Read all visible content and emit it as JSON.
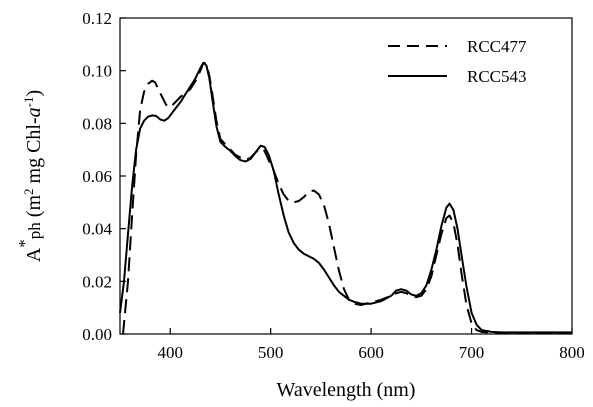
{
  "chart_data": {
    "type": "line",
    "xlabel": "Wavelength (nm)",
    "ylabel": {
      "prefix": "A",
      "star": "*",
      "sub": "ph",
      "paren_open": " (m",
      "sup1": "2",
      "mid": " mg Chl-",
      "italic": "a",
      "sup2": "-1",
      "paren_close": ")"
    },
    "xlim": [
      350,
      800
    ],
    "ylim": [
      0,
      0.12
    ],
    "xticks": [
      {
        "value": 400,
        "label": "400"
      },
      {
        "value": 500,
        "label": "500"
      },
      {
        "value": 600,
        "label": "600"
      },
      {
        "value": 700,
        "label": "700"
      },
      {
        "value": 800,
        "label": "800"
      }
    ],
    "yticks": [
      {
        "value": 0.0,
        "label": "0.00"
      },
      {
        "value": 0.02,
        "label": "0.02"
      },
      {
        "value": 0.04,
        "label": "0.04"
      },
      {
        "value": 0.06,
        "label": "0.06"
      },
      {
        "value": 0.08,
        "label": "0.08"
      },
      {
        "value": 0.1,
        "label": "0.10"
      },
      {
        "value": 0.12,
        "label": "0.12"
      }
    ],
    "grid": false,
    "legend_position": "top-right",
    "series": [
      {
        "name": "RCC477",
        "style": "dashed",
        "color": "#000000",
        "x": [
          353,
          358,
          362,
          366,
          370,
          374,
          378,
          382,
          385,
          388,
          392,
          396,
          400,
          405,
          410,
          415,
          420,
          425,
          430,
          433,
          436,
          439,
          442,
          446,
          450,
          455,
          460,
          465,
          470,
          475,
          480,
          485,
          490,
          494,
          498,
          503,
          508,
          513,
          518,
          523,
          528,
          533,
          538,
          543,
          548,
          553,
          558,
          563,
          568,
          573,
          578,
          583,
          590,
          600,
          610,
          620,
          625,
          630,
          635,
          640,
          645,
          650,
          655,
          660,
          665,
          670,
          675,
          678,
          682,
          686,
          690,
          695,
          700,
          705,
          710,
          720,
          730,
          740,
          750,
          760,
          770,
          780,
          790,
          800
        ],
        "y": [
          0.0,
          0.02,
          0.045,
          0.068,
          0.085,
          0.092,
          0.095,
          0.0962,
          0.0955,
          0.093,
          0.09,
          0.087,
          0.086,
          0.088,
          0.09,
          0.0915,
          0.093,
          0.096,
          0.1,
          0.103,
          0.1025,
          0.098,
          0.091,
          0.081,
          0.074,
          0.072,
          0.07,
          0.068,
          0.067,
          0.066,
          0.067,
          0.069,
          0.0705,
          0.0695,
          0.066,
          0.062,
          0.057,
          0.053,
          0.0505,
          0.05,
          0.0505,
          0.052,
          0.054,
          0.0545,
          0.053,
          0.049,
          0.042,
          0.033,
          0.024,
          0.017,
          0.013,
          0.0115,
          0.011,
          0.012,
          0.013,
          0.0145,
          0.0155,
          0.016,
          0.0155,
          0.0145,
          0.014,
          0.0145,
          0.017,
          0.022,
          0.03,
          0.038,
          0.044,
          0.045,
          0.042,
          0.034,
          0.023,
          0.011,
          0.004,
          0.0015,
          0.0008,
          0.0005,
          0.0005,
          0.0005,
          0.0005,
          0.0005,
          0.0005,
          0.0005,
          0.0005,
          0.0005
        ]
      },
      {
        "name": "RCC543",
        "style": "solid",
        "color": "#000000",
        "x": [
          350,
          354,
          358,
          362,
          366,
          370,
          374,
          378,
          382,
          386,
          390,
          394,
          398,
          402,
          406,
          410,
          415,
          420,
          425,
          430,
          433,
          436,
          439,
          442,
          446,
          450,
          455,
          460,
          465,
          470,
          475,
          480,
          485,
          490,
          494,
          498,
          503,
          508,
          513,
          518,
          523,
          528,
          533,
          538,
          543,
          548,
          553,
          558,
          563,
          568,
          573,
          578,
          585,
          590,
          600,
          610,
          620,
          625,
          630,
          635,
          640,
          645,
          650,
          655,
          660,
          665,
          670,
          675,
          678,
          682,
          686,
          690,
          695,
          700,
          705,
          710,
          720,
          730,
          740,
          750,
          760,
          770,
          780,
          790,
          800
        ],
        "y": [
          0.008,
          0.02,
          0.038,
          0.056,
          0.07,
          0.078,
          0.081,
          0.0825,
          0.083,
          0.0828,
          0.0815,
          0.081,
          0.082,
          0.084,
          0.086,
          0.088,
          0.091,
          0.094,
          0.097,
          0.101,
          0.103,
          0.102,
          0.097,
          0.089,
          0.079,
          0.073,
          0.071,
          0.0695,
          0.0675,
          0.066,
          0.0655,
          0.0665,
          0.069,
          0.0715,
          0.071,
          0.068,
          0.062,
          0.053,
          0.045,
          0.0385,
          0.0345,
          0.032,
          0.0305,
          0.0295,
          0.0285,
          0.027,
          0.0245,
          0.0215,
          0.0185,
          0.016,
          0.0145,
          0.013,
          0.012,
          0.0115,
          0.0115,
          0.0125,
          0.0145,
          0.0165,
          0.017,
          0.0165,
          0.015,
          0.0145,
          0.0155,
          0.0185,
          0.0245,
          0.032,
          0.041,
          0.048,
          0.0495,
          0.047,
          0.04,
          0.03,
          0.018,
          0.008,
          0.0035,
          0.0015,
          0.0008,
          0.0006,
          0.0006,
          0.0006,
          0.0006,
          0.0006,
          0.0006,
          0.0006,
          0.0006
        ]
      }
    ]
  }
}
